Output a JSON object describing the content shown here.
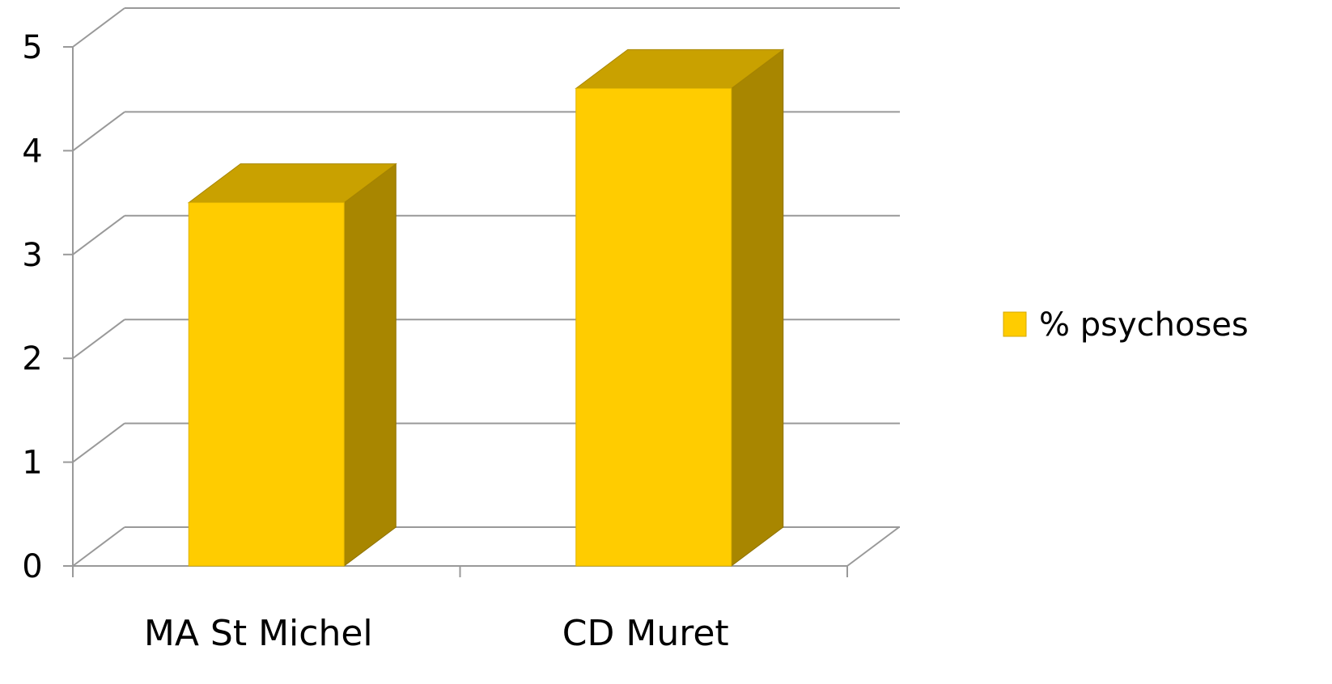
{
  "chart_data": {
    "type": "bar",
    "categories": [
      "MA St Michel",
      "CD Muret"
    ],
    "series": [
      {
        "name": "% psychoses",
        "values": [
          3.5,
          4.6
        ]
      }
    ],
    "ylim": [
      0,
      5
    ],
    "yticks": [
      0,
      1,
      2,
      3,
      4,
      5
    ],
    "grid": true,
    "legend": "right",
    "style": "3d",
    "colors": {
      "front": "#FFCC00",
      "top": "#C9A100",
      "side": "#A88600",
      "grid": "#999999",
      "legend_swatch": "#FFCC00"
    }
  }
}
